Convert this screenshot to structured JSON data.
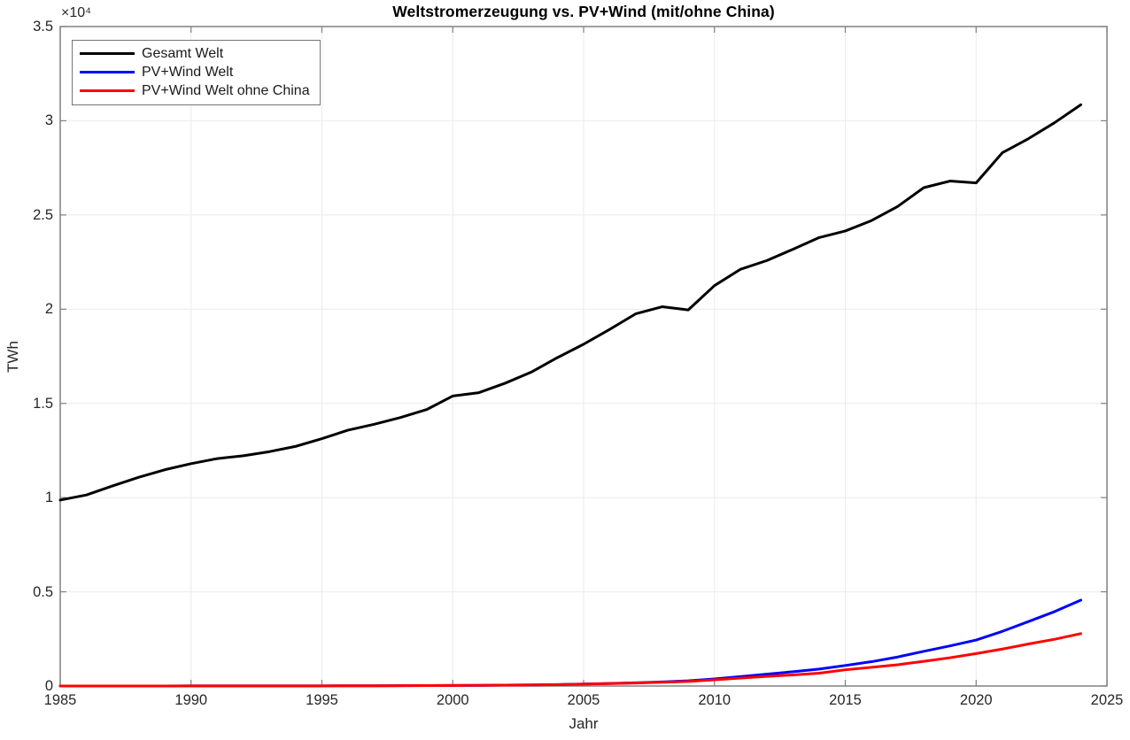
{
  "figure": {
    "title": "Weltstromerzeugung vs. PV+Wind (mit/ohne China)",
    "y_exponent_label": "×10⁴",
    "xlabel": "Jahr",
    "ylabel": "TWh"
  },
  "legend": {
    "items": [
      {
        "label": "Gesamt Welt",
        "color": "#000000"
      },
      {
        "label": "PV+Wind Welt",
        "color": "#0000ff"
      },
      {
        "label": "PV+Wind Welt ohne China",
        "color": "#ff0000"
      }
    ]
  },
  "axes": {
    "x_tick_labels": [
      "1985",
      "1990",
      "1995",
      "2000",
      "2005",
      "2010",
      "2015",
      "2020",
      "2025"
    ],
    "y_tick_labels": [
      "0",
      "0.5",
      "1",
      "1.5",
      "2",
      "2.5",
      "3",
      "3.5"
    ]
  },
  "colors": {
    "background": "#ffffff",
    "grid": "#ebebeb",
    "axis_box": "#808080",
    "tick": "#808080",
    "text": "#262626"
  },
  "chart_data": {
    "type": "line",
    "title": "Weltstromerzeugung vs. PV+Wind (mit/ohne China)",
    "xlabel": "Jahr",
    "ylabel": "TWh",
    "grid": true,
    "legend_position": "top-left",
    "xlim": [
      1985,
      2025
    ],
    "ylim": [
      0,
      35000
    ],
    "xticks": [
      1985,
      1990,
      1995,
      2000,
      2005,
      2010,
      2015,
      2020,
      2025
    ],
    "yticks": [
      0,
      5000,
      10000,
      15000,
      20000,
      25000,
      30000,
      35000
    ],
    "x": [
      1985,
      1986,
      1987,
      1988,
      1989,
      1990,
      1991,
      1992,
      1993,
      1994,
      1995,
      1996,
      1997,
      1998,
      1999,
      2000,
      2001,
      2002,
      2003,
      2004,
      2005,
      2006,
      2007,
      2008,
      2009,
      2010,
      2011,
      2012,
      2013,
      2014,
      2015,
      2016,
      2017,
      2018,
      2019,
      2020,
      2021,
      2022,
      2023,
      2024
    ],
    "series": [
      {
        "name": "Gesamt Welt",
        "color": "#000000",
        "values": [
          9870,
          10140,
          10620,
          11080,
          11480,
          11800,
          12070,
          12220,
          12440,
          12720,
          13130,
          13580,
          13890,
          14250,
          14670,
          15390,
          15570,
          16070,
          16660,
          17430,
          18140,
          18930,
          19760,
          20130,
          19960,
          21250,
          22120,
          22580,
          23180,
          23800,
          24150,
          24700,
          25450,
          26450,
          26800,
          26700,
          28300,
          29050,
          29900,
          30850
        ]
      },
      {
        "name": "PV+Wind Welt",
        "color": "#0000ff",
        "values": [
          0.1,
          0.2,
          0.4,
          0.7,
          1.5,
          3.9,
          4.5,
          5,
          6,
          7.5,
          8.3,
          9.5,
          12,
          16,
          21,
          32,
          38,
          46,
          57,
          75,
          104,
          133,
          171,
          220,
          276,
          375,
          500,
          630,
          760,
          900,
          1090,
          1290,
          1540,
          1840,
          2130,
          2440,
          2900,
          3420,
          3950,
          4560
        ]
      },
      {
        "name": "PV+Wind Welt ohne China",
        "color": "#ff0000",
        "values": [
          0.1,
          0.2,
          0.4,
          0.7,
          1.5,
          3.9,
          4.5,
          5,
          6,
          7.5,
          8.3,
          9.5,
          12,
          16,
          21,
          31,
          37,
          45,
          55,
          72,
          100,
          127,
          160,
          198,
          238,
          330,
          420,
          510,
          590,
          680,
          860,
          990,
          1130,
          1310,
          1500,
          1720,
          1960,
          2230,
          2480,
          2780
        ]
      }
    ]
  }
}
